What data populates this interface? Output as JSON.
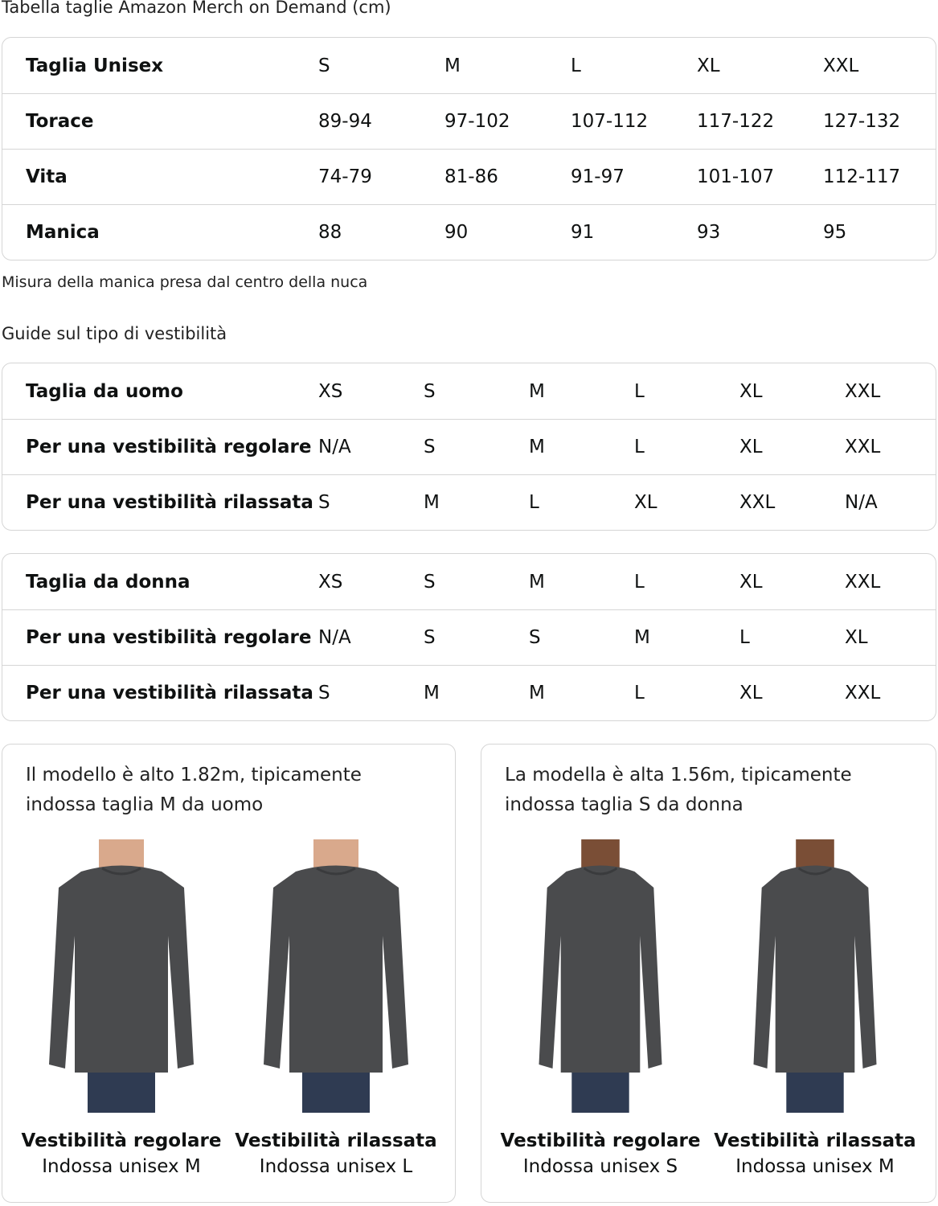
{
  "title": "Tabella taglie Amazon Merch on Demand (cm)",
  "unisex_table": {
    "rows": [
      {
        "label": "Taglia Unisex",
        "values": [
          "S",
          "M",
          "L",
          "XL",
          "XXL"
        ]
      },
      {
        "label": "Torace",
        "values": [
          "89-94",
          "97-102",
          "107-112",
          "117-122",
          "127-132"
        ]
      },
      {
        "label": "Vita",
        "values": [
          "74-79",
          "81-86",
          "91-97",
          "101-107",
          "112-117"
        ]
      },
      {
        "label": "Manica",
        "values": [
          "88",
          "90",
          "91",
          "93",
          "95"
        ]
      }
    ]
  },
  "sleeve_note": "Misura della manica presa dal centro della nuca",
  "fit_guide_title": "Guide sul tipo di vestibilità",
  "men_table": {
    "rows": [
      {
        "label": "Taglia da uomo",
        "values": [
          "XS",
          "S",
          "M",
          "L",
          "XL",
          "XXL"
        ]
      },
      {
        "label": "Per una vestibilità regolare",
        "values": [
          "N/A",
          "S",
          "M",
          "L",
          "XL",
          "XXL"
        ]
      },
      {
        "label": "Per una vestibilità rilassata",
        "values": [
          "S",
          "M",
          "L",
          "XL",
          "XXL",
          "N/A"
        ]
      }
    ]
  },
  "women_table": {
    "rows": [
      {
        "label": "Taglia da donna",
        "values": [
          "XS",
          "S",
          "M",
          "L",
          "XL",
          "XXL"
        ]
      },
      {
        "label": "Per una vestibilità regolare",
        "values": [
          "N/A",
          "S",
          "S",
          "M",
          "L",
          "XL"
        ]
      },
      {
        "label": "Per una vestibilità rilassata",
        "values": [
          "S",
          "M",
          "M",
          "L",
          "XL",
          "XXL"
        ]
      }
    ]
  },
  "cards": [
    {
      "caption": "Il modello è alto 1.82m, tipicamente indossa taglia M da uomo",
      "figures": [
        {
          "fit": "Vestibilità regolare",
          "wears": "Indossa unisex M",
          "model": "male"
        },
        {
          "fit": "Vestibilità rilassata",
          "wears": "Indossa unisex L",
          "model": "male"
        }
      ]
    },
    {
      "caption": "La modella è alta 1.56m, tipicamente indossa taglia S da donna",
      "figures": [
        {
          "fit": "Vestibilità regolare",
          "wears": "Indossa unisex S",
          "model": "female"
        },
        {
          "fit": "Vestibilità rilassata",
          "wears": "Indossa unisex M",
          "model": "female"
        }
      ]
    }
  ],
  "colors": {
    "shirt": "#4a4b4d",
    "jeans": "#2f3b52",
    "skin_male": "#d9a98c",
    "skin_female": "#7a4e36",
    "border": "#d5d5d5"
  }
}
